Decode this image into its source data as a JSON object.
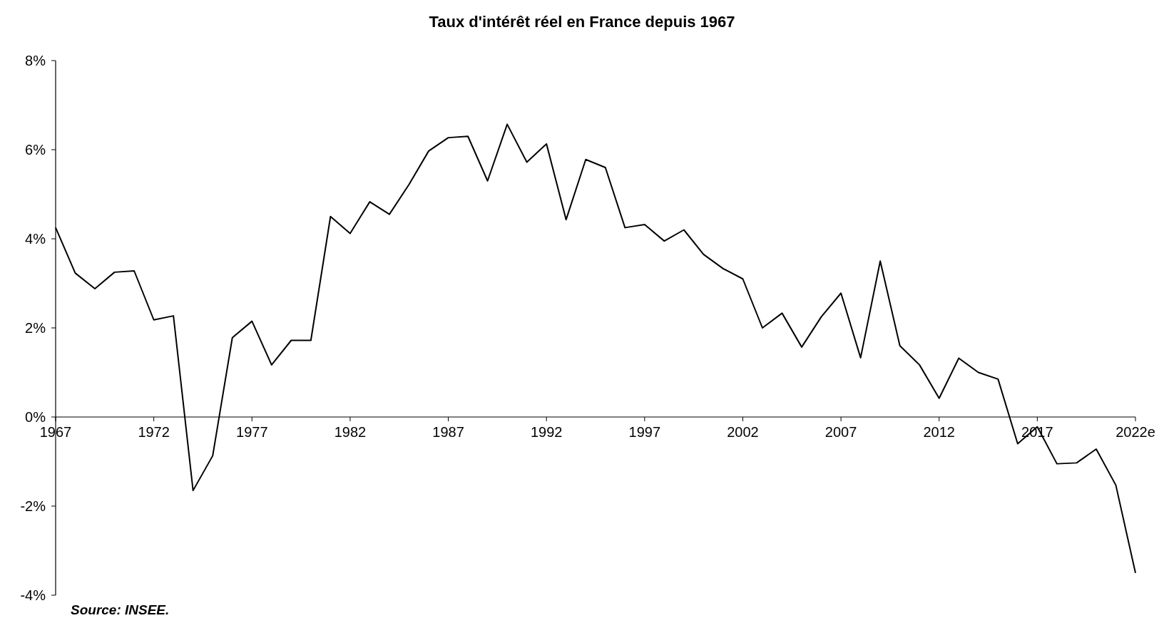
{
  "chart_data": {
    "type": "line",
    "title": "Taux d'intérêt réel en France depuis 1967",
    "categories": [
      "1967",
      null,
      null,
      null,
      null,
      "1972",
      null,
      null,
      null,
      null,
      "1977",
      null,
      null,
      null,
      null,
      "1982",
      null,
      null,
      null,
      null,
      "1987",
      null,
      null,
      null,
      null,
      "1992",
      null,
      null,
      null,
      null,
      "1997",
      null,
      null,
      null,
      null,
      "2002",
      null,
      null,
      null,
      null,
      "2007",
      null,
      null,
      null,
      null,
      "2012",
      null,
      null,
      null,
      null,
      "2017",
      null,
      null,
      null,
      null,
      "2022e"
    ],
    "series": [
      {
        "color": "#000000",
        "values": [
          4.25,
          3.23,
          2.88,
          3.25,
          3.28,
          2.18,
          2.27,
          -1.65,
          -0.87,
          1.78,
          2.15,
          1.17,
          1.72,
          1.72,
          4.5,
          4.12,
          4.83,
          4.55,
          5.22,
          5.97,
          6.27,
          6.3,
          5.3,
          6.57,
          5.72,
          6.13,
          4.43,
          5.78,
          5.6,
          4.25,
          4.32,
          3.95,
          4.2,
          3.65,
          3.33,
          3.1,
          2.0,
          2.33,
          1.57,
          2.25,
          2.78,
          1.33,
          3.5,
          1.6,
          1.17,
          0.42,
          1.32,
          1.0,
          0.85,
          -0.6,
          -0.22,
          -1.05,
          -1.03,
          -0.72,
          -1.53,
          -3.5
        ]
      }
    ],
    "ylim": [
      -4,
      8
    ],
    "yticks": [
      {
        "value": -4,
        "label": "-4%"
      },
      {
        "value": -2,
        "label": "-2%"
      },
      {
        "value": 0,
        "label": "0%"
      },
      {
        "value": 2,
        "label": "2%"
      },
      {
        "value": 4,
        "label": "4%"
      },
      {
        "value": 6,
        "label": "6%"
      },
      {
        "value": 8,
        "label": "8%"
      }
    ],
    "grid": false,
    "line_style": "solid",
    "annotations": [
      "Source: INSEE."
    ]
  }
}
